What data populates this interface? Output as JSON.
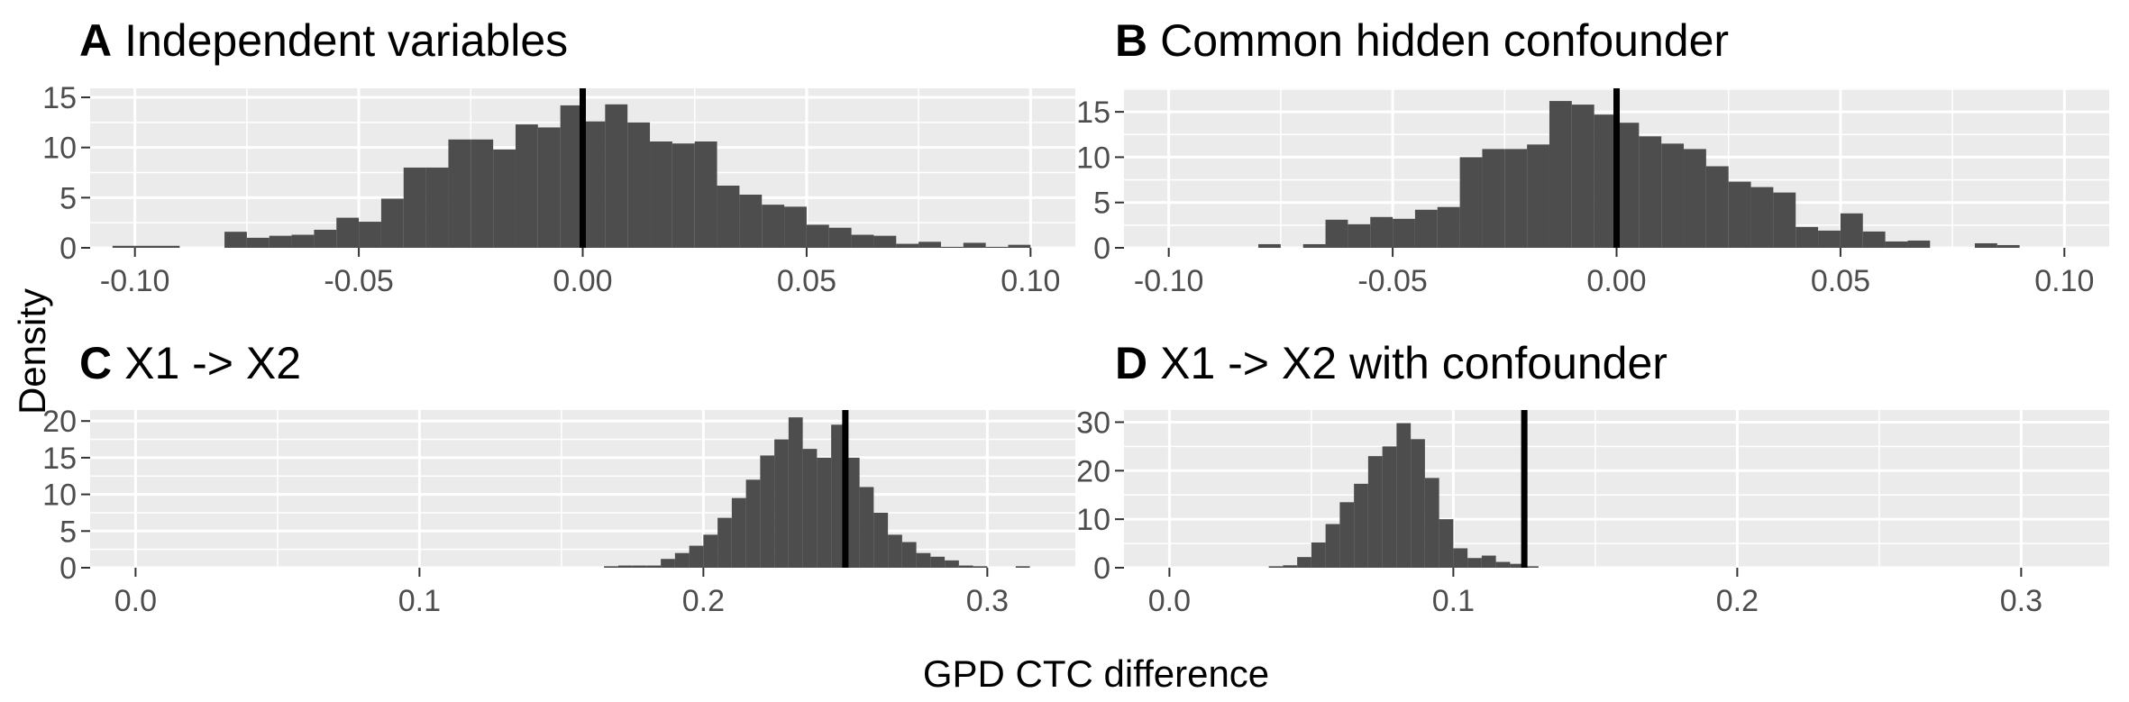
{
  "axis_titles": {
    "y": "Density",
    "x": "GPD CTC difference"
  },
  "colors": {
    "panel_bg": "#ebebeb",
    "grid": "#ffffff",
    "bar": "#4d4d4d",
    "vline": "#000000",
    "tick_text": "#4d4d4d"
  },
  "chart_data": [
    {
      "type": "bar",
      "tag": "A",
      "title": "Independent variables",
      "xlim": [
        -0.11,
        0.11
      ],
      "ylim": [
        0,
        15.9
      ],
      "xticks": [
        -0.1,
        -0.05,
        0.0,
        0.05,
        0.1
      ],
      "xtick_labels": [
        "-0.10",
        "-0.05",
        "0.00",
        "0.05",
        "0.10"
      ],
      "yticks": [
        0,
        5,
        10,
        15
      ],
      "ytick_labels": [
        "0",
        "5",
        "10",
        "15"
      ],
      "vline": 0.0,
      "bin_width": 0.005,
      "bins": [
        {
          "x": -0.1025,
          "y": 0.2
        },
        {
          "x": -0.0975,
          "y": 0.2
        },
        {
          "x": -0.0925,
          "y": 0.2
        },
        {
          "x": -0.0775,
          "y": 1.6
        },
        {
          "x": -0.0725,
          "y": 1.0
        },
        {
          "x": -0.0675,
          "y": 1.2
        },
        {
          "x": -0.0625,
          "y": 1.3
        },
        {
          "x": -0.0575,
          "y": 1.8
        },
        {
          "x": -0.0525,
          "y": 3.0
        },
        {
          "x": -0.0475,
          "y": 2.6
        },
        {
          "x": -0.0425,
          "y": 4.9
        },
        {
          "x": -0.0375,
          "y": 8.0
        },
        {
          "x": -0.0325,
          "y": 8.0
        },
        {
          "x": -0.0275,
          "y": 10.8
        },
        {
          "x": -0.0225,
          "y": 10.8
        },
        {
          "x": -0.0175,
          "y": 9.8
        },
        {
          "x": -0.0125,
          "y": 12.3
        },
        {
          "x": -0.0075,
          "y": 12.0
        },
        {
          "x": -0.0025,
          "y": 14.2
        },
        {
          "x": 0.0025,
          "y": 12.6
        },
        {
          "x": 0.0075,
          "y": 14.3
        },
        {
          "x": 0.0125,
          "y": 12.5
        },
        {
          "x": 0.0175,
          "y": 10.6
        },
        {
          "x": 0.0225,
          "y": 10.4
        },
        {
          "x": 0.0275,
          "y": 10.6
        },
        {
          "x": 0.0325,
          "y": 6.2
        },
        {
          "x": 0.0375,
          "y": 5.3
        },
        {
          "x": 0.0425,
          "y": 4.3
        },
        {
          "x": 0.0475,
          "y": 4.1
        },
        {
          "x": 0.0525,
          "y": 2.3
        },
        {
          "x": 0.0575,
          "y": 2.0
        },
        {
          "x": 0.0625,
          "y": 1.3
        },
        {
          "x": 0.0675,
          "y": 1.2
        },
        {
          "x": 0.0725,
          "y": 0.4
        },
        {
          "x": 0.0775,
          "y": 0.6
        },
        {
          "x": 0.0825,
          "y": 0.1
        },
        {
          "x": 0.0875,
          "y": 0.5
        },
        {
          "x": 0.0925,
          "y": 0.1
        },
        {
          "x": 0.0975,
          "y": 0.3
        }
      ]
    },
    {
      "type": "bar",
      "tag": "B",
      "title": "Common hidden confounder",
      "xlim": [
        -0.11,
        0.11
      ],
      "ylim": [
        0,
        17.6
      ],
      "xticks": [
        -0.1,
        -0.05,
        0.0,
        0.05,
        0.1
      ],
      "xtick_labels": [
        "-0.10",
        "-0.05",
        "0.00",
        "0.05",
        "0.10"
      ],
      "yticks": [
        0,
        5,
        10,
        15
      ],
      "ytick_labels": [
        "0",
        "5",
        "10",
        "15"
      ],
      "vline": 0.0,
      "bin_width": 0.005,
      "bins": [
        {
          "x": -0.0775,
          "y": 0.4
        },
        {
          "x": -0.0675,
          "y": 0.4
        },
        {
          "x": -0.0625,
          "y": 3.1
        },
        {
          "x": -0.0575,
          "y": 2.6
        },
        {
          "x": -0.0525,
          "y": 3.4
        },
        {
          "x": -0.0475,
          "y": 3.2
        },
        {
          "x": -0.0425,
          "y": 4.2
        },
        {
          "x": -0.0375,
          "y": 4.5
        },
        {
          "x": -0.0325,
          "y": 10.0
        },
        {
          "x": -0.0275,
          "y": 10.9
        },
        {
          "x": -0.0225,
          "y": 10.9
        },
        {
          "x": -0.0175,
          "y": 11.4
        },
        {
          "x": -0.0125,
          "y": 16.2
        },
        {
          "x": -0.0075,
          "y": 15.8
        },
        {
          "x": -0.0025,
          "y": 14.7
        },
        {
          "x": 0.0025,
          "y": 13.8
        },
        {
          "x": 0.0075,
          "y": 12.3
        },
        {
          "x": 0.0125,
          "y": 11.5
        },
        {
          "x": 0.0175,
          "y": 10.9
        },
        {
          "x": 0.0225,
          "y": 9.0
        },
        {
          "x": 0.0275,
          "y": 7.3
        },
        {
          "x": 0.0325,
          "y": 6.7
        },
        {
          "x": 0.0375,
          "y": 6.1
        },
        {
          "x": 0.0425,
          "y": 2.3
        },
        {
          "x": 0.0475,
          "y": 1.9
        },
        {
          "x": 0.0525,
          "y": 3.8
        },
        {
          "x": 0.0575,
          "y": 1.8
        },
        {
          "x": 0.0625,
          "y": 0.7
        },
        {
          "x": 0.0675,
          "y": 0.8
        },
        {
          "x": 0.0825,
          "y": 0.5
        },
        {
          "x": 0.0875,
          "y": 0.3
        }
      ]
    },
    {
      "type": "bar",
      "tag": "C",
      "title": "X1 -> X2",
      "xlim": [
        -0.016,
        0.331
      ],
      "ylim": [
        0,
        21.5
      ],
      "xticks": [
        0.0,
        0.1,
        0.2,
        0.3
      ],
      "xtick_labels": [
        "0.0",
        "0.1",
        "0.2",
        "0.3"
      ],
      "yticks": [
        0,
        5,
        10,
        15,
        20
      ],
      "ytick_labels": [
        "0",
        "5",
        "10",
        "15",
        "20"
      ],
      "vline": 0.25,
      "bin_width": 0.005,
      "bins": [
        {
          "x": 0.1675,
          "y": 0.2
        },
        {
          "x": 0.1725,
          "y": 0.3
        },
        {
          "x": 0.1775,
          "y": 0.3
        },
        {
          "x": 0.1825,
          "y": 0.3
        },
        {
          "x": 0.1875,
          "y": 1.2
        },
        {
          "x": 0.1925,
          "y": 2.0
        },
        {
          "x": 0.1975,
          "y": 3.0
        },
        {
          "x": 0.2025,
          "y": 4.5
        },
        {
          "x": 0.2075,
          "y": 6.8
        },
        {
          "x": 0.2125,
          "y": 9.5
        },
        {
          "x": 0.2175,
          "y": 12.0
        },
        {
          "x": 0.2225,
          "y": 15.3
        },
        {
          "x": 0.2275,
          "y": 17.5
        },
        {
          "x": 0.2325,
          "y": 20.5
        },
        {
          "x": 0.2375,
          "y": 16.2
        },
        {
          "x": 0.2425,
          "y": 15.0
        },
        {
          "x": 0.2475,
          "y": 19.5
        },
        {
          "x": 0.2525,
          "y": 15.0
        },
        {
          "x": 0.2575,
          "y": 11.0
        },
        {
          "x": 0.2625,
          "y": 7.5
        },
        {
          "x": 0.2675,
          "y": 4.5
        },
        {
          "x": 0.2725,
          "y": 3.5
        },
        {
          "x": 0.2775,
          "y": 2.0
        },
        {
          "x": 0.2825,
          "y": 1.5
        },
        {
          "x": 0.2875,
          "y": 1.0
        },
        {
          "x": 0.2925,
          "y": 0.3
        },
        {
          "x": 0.2975,
          "y": 0.2
        },
        {
          "x": 0.3125,
          "y": 0.2
        }
      ]
    },
    {
      "type": "bar",
      "tag": "D",
      "title": "X1 -> X2 with confounder",
      "xlim": [
        -0.016,
        0.331
      ],
      "ylim": [
        0,
        32.5
      ],
      "xticks": [
        0.0,
        0.1,
        0.2,
        0.3
      ],
      "xtick_labels": [
        "0.0",
        "0.1",
        "0.2",
        "0.3"
      ],
      "yticks": [
        0,
        10,
        20,
        30
      ],
      "ytick_labels": [
        "0",
        "10",
        "20",
        "30"
      ],
      "vline": 0.125,
      "bin_width": 0.005,
      "bins": [
        {
          "x": 0.0375,
          "y": 0.3
        },
        {
          "x": 0.0425,
          "y": 0.5
        },
        {
          "x": 0.0475,
          "y": 2.2
        },
        {
          "x": 0.0525,
          "y": 5.2
        },
        {
          "x": 0.0575,
          "y": 9.0
        },
        {
          "x": 0.0625,
          "y": 13.5
        },
        {
          "x": 0.0675,
          "y": 17.3
        },
        {
          "x": 0.0725,
          "y": 23.0
        },
        {
          "x": 0.0775,
          "y": 25.0
        },
        {
          "x": 0.0825,
          "y": 29.8
        },
        {
          "x": 0.0875,
          "y": 26.5
        },
        {
          "x": 0.0925,
          "y": 18.5
        },
        {
          "x": 0.0975,
          "y": 10.0
        },
        {
          "x": 0.1025,
          "y": 4.0
        },
        {
          "x": 0.1075,
          "y": 2.0
        },
        {
          "x": 0.1125,
          "y": 2.5
        },
        {
          "x": 0.1175,
          "y": 1.2
        },
        {
          "x": 0.1225,
          "y": 0.8
        },
        {
          "x": 0.1275,
          "y": 0.3
        }
      ]
    }
  ]
}
